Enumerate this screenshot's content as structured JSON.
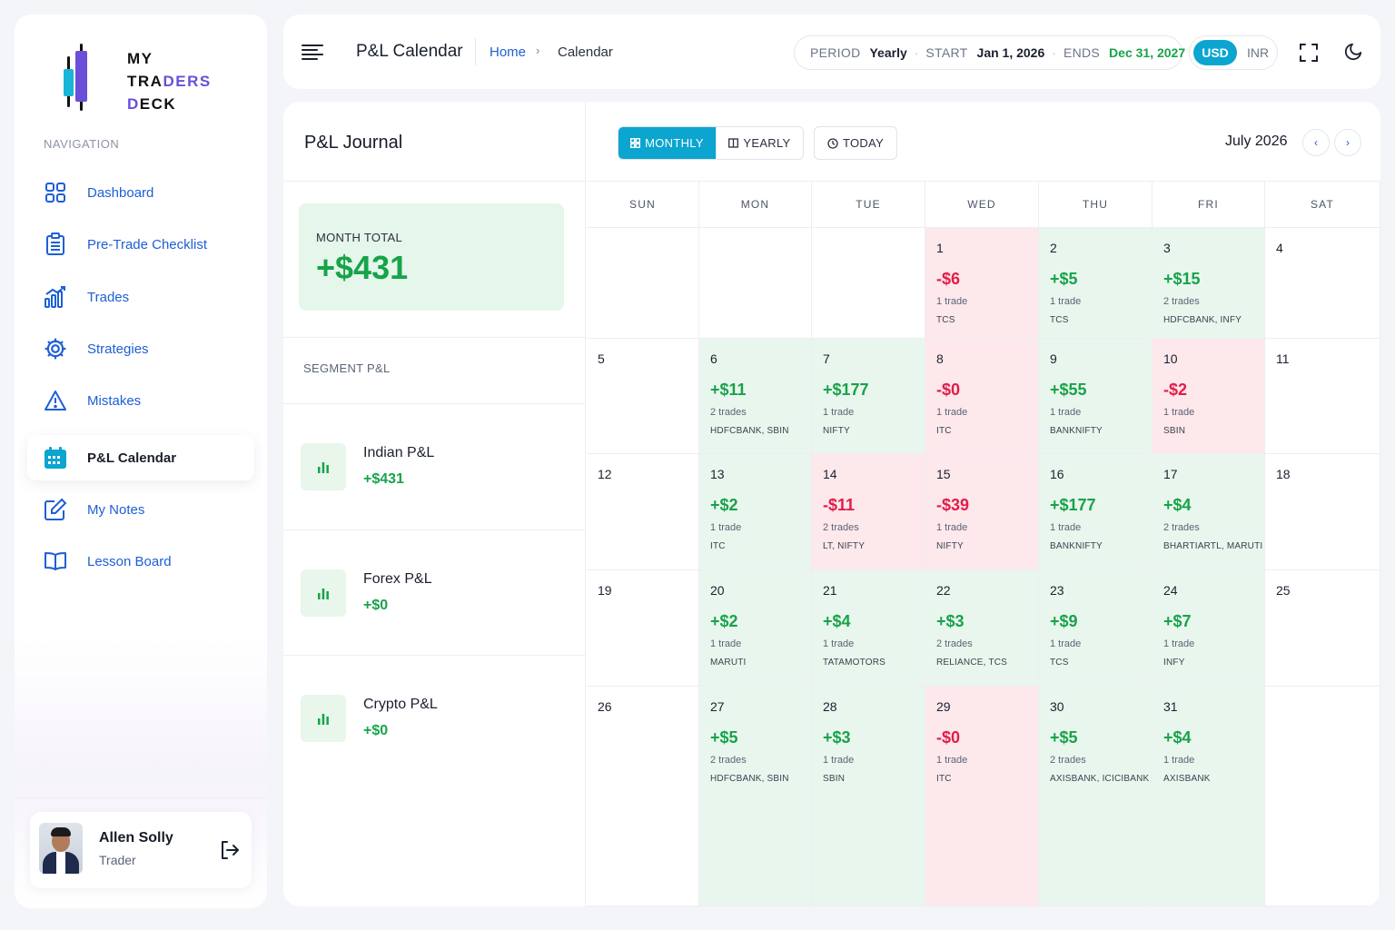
{
  "brand": {
    "line1": "MY",
    "line2a": "TRA",
    "line2b": "DERS",
    "line3a": "D",
    "line3b": "ECK"
  },
  "nav": {
    "label": "NAVIGATION",
    "items": [
      {
        "label": "Dashboard",
        "icon": "grid-icon"
      },
      {
        "label": "Pre-Trade Checklist",
        "icon": "clipboard-icon"
      },
      {
        "label": "Trades",
        "icon": "chart-bars-icon"
      },
      {
        "label": "Strategies",
        "icon": "gear-icon"
      },
      {
        "label": "Mistakes",
        "icon": "warning-icon"
      },
      {
        "label": "P&L Calendar",
        "icon": "calendar-icon"
      },
      {
        "label": "My Notes",
        "icon": "edit-icon"
      },
      {
        "label": "Lesson Board",
        "icon": "book-icon"
      }
    ]
  },
  "user": {
    "name": "Allen Solly",
    "role": "Trader"
  },
  "header": {
    "title": "P&L Calendar",
    "breadcrumb": {
      "home": "Home",
      "sep": "›",
      "current": "Calendar"
    },
    "period": {
      "label": "PERIOD",
      "value": "Yearly",
      "start_label": "START",
      "start": "Jan 1, 2026",
      "end_label": "ENDS",
      "end": "Dec 31, 2027",
      "dot": "·"
    },
    "currency": {
      "active": "USD",
      "other": "INR"
    }
  },
  "journal": {
    "title": "P&L Journal",
    "month_total_label": "MONTH TOTAL",
    "month_total": "+$431",
    "segment_label": "SEGMENT P&L",
    "segments": [
      {
        "name": "Indian P&L",
        "value": "+$431"
      },
      {
        "name": "Forex P&L",
        "value": "+$0"
      },
      {
        "name": "Crypto P&L",
        "value": "+$0"
      }
    ]
  },
  "calendar": {
    "views": {
      "monthly": "MONTHLY",
      "yearly": "YEARLY",
      "today": "TODAY"
    },
    "month": "July 2026",
    "prev": "‹",
    "next": "›",
    "weekdays": [
      "SUN",
      "MON",
      "TUE",
      "WED",
      "THU",
      "FRI",
      "SAT"
    ],
    "weeks": [
      [
        null,
        null,
        null,
        {
          "day": "1",
          "pnl": "-$6",
          "trades": "1 trade",
          "symbols": "TCS",
          "status": "neg"
        },
        {
          "day": "2",
          "pnl": "+$5",
          "trades": "1 trade",
          "symbols": "TCS",
          "status": "pos"
        },
        {
          "day": "3",
          "pnl": "+$15",
          "trades": "2 trades",
          "symbols": "HDFCBANK, INFY",
          "status": "pos"
        },
        {
          "day": "4"
        }
      ],
      [
        {
          "day": "5"
        },
        {
          "day": "6",
          "pnl": "+$11",
          "trades": "2 trades",
          "symbols": "HDFCBANK, SBIN",
          "status": "pos"
        },
        {
          "day": "7",
          "pnl": "+$177",
          "trades": "1 trade",
          "symbols": "NIFTY",
          "status": "pos"
        },
        {
          "day": "8",
          "pnl": "-$0",
          "trades": "1 trade",
          "symbols": "ITC",
          "status": "neg"
        },
        {
          "day": "9",
          "pnl": "+$55",
          "trades": "1 trade",
          "symbols": "BANKNIFTY",
          "status": "pos"
        },
        {
          "day": "10",
          "pnl": "-$2",
          "trades": "1 trade",
          "symbols": "SBIN",
          "status": "neg"
        },
        {
          "day": "11"
        }
      ],
      [
        {
          "day": "12"
        },
        {
          "day": "13",
          "pnl": "+$2",
          "trades": "1 trade",
          "symbols": "ITC",
          "status": "pos"
        },
        {
          "day": "14",
          "pnl": "-$11",
          "trades": "2 trades",
          "symbols": "LT, NIFTY",
          "status": "neg"
        },
        {
          "day": "15",
          "pnl": "-$39",
          "trades": "1 trade",
          "symbols": "NIFTY",
          "status": "neg"
        },
        {
          "day": "16",
          "pnl": "+$177",
          "trades": "1 trade",
          "symbols": "BANKNIFTY",
          "status": "pos"
        },
        {
          "day": "17",
          "pnl": "+$4",
          "trades": "2 trades",
          "symbols": "BHARTIARTL, MARUTI",
          "status": "pos"
        },
        {
          "day": "18"
        }
      ],
      [
        {
          "day": "19"
        },
        {
          "day": "20",
          "pnl": "+$2",
          "trades": "1 trade",
          "symbols": "MARUTI",
          "status": "pos"
        },
        {
          "day": "21",
          "pnl": "+$4",
          "trades": "1 trade",
          "symbols": "TATAMOTORS",
          "status": "pos"
        },
        {
          "day": "22",
          "pnl": "+$3",
          "trades": "2 trades",
          "symbols": "RELIANCE, TCS",
          "status": "pos"
        },
        {
          "day": "23",
          "pnl": "+$9",
          "trades": "1 trade",
          "symbols": "TCS",
          "status": "pos"
        },
        {
          "day": "24",
          "pnl": "+$7",
          "trades": "1 trade",
          "symbols": "INFY",
          "status": "pos"
        },
        {
          "day": "25"
        }
      ],
      [
        {
          "day": "26"
        },
        {
          "day": "27",
          "pnl": "+$5",
          "trades": "2 trades",
          "symbols": "HDFCBANK, SBIN",
          "status": "pos"
        },
        {
          "day": "28",
          "pnl": "+$3",
          "trades": "1 trade",
          "symbols": "SBIN",
          "status": "pos"
        },
        {
          "day": "29",
          "pnl": "-$0",
          "trades": "1 trade",
          "symbols": "ITC",
          "status": "neg"
        },
        {
          "day": "30",
          "pnl": "+$5",
          "trades": "2 trades",
          "symbols": "AXISBANK, ICICIBANK",
          "status": "pos"
        },
        {
          "day": "31",
          "pnl": "+$4",
          "trades": "1 trade",
          "symbols": "AXISBANK",
          "status": "pos"
        },
        null
      ]
    ]
  },
  "colors": {
    "accent": "#0ba5cf",
    "link": "#1d5fd6",
    "profit": "#17a34a",
    "loss": "#e11d48",
    "profit_bg": "#e9f6ed",
    "loss_bg": "#fde8ec"
  }
}
